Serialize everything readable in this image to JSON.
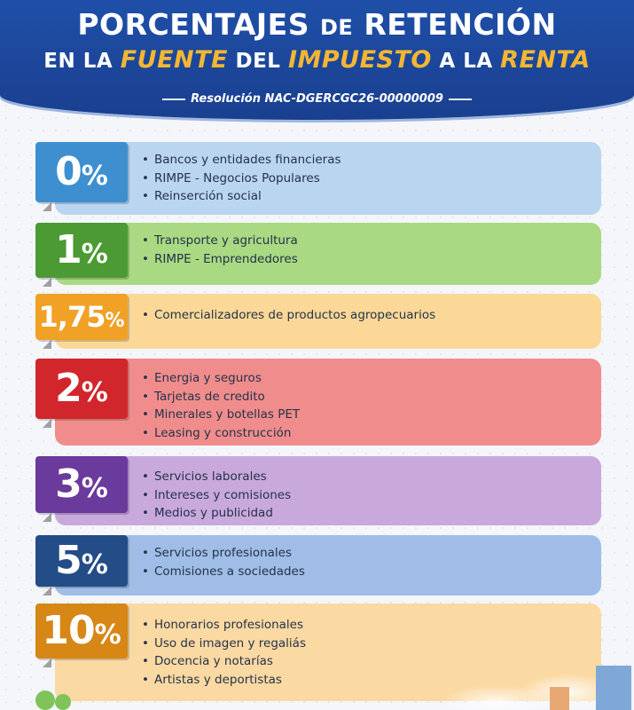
{
  "header": {
    "title_part1": "PORCENTAJES",
    "title_part2": "DE",
    "title_part3": "RETENCIÓN",
    "subtitle_en_la": "EN LA",
    "subtitle_fuente": "FUENTE",
    "subtitle_del": "DEL",
    "subtitle_impuesto": "IMPUESTO",
    "subtitle_a_la": "A LA",
    "subtitle_renta": "RENTA",
    "resolution": "Resolución NAC-DGERCGC26-00000009"
  },
  "rows": [
    {
      "rate": "0",
      "pct": "%",
      "badge_color": "#3d8fd0",
      "bar_color": "#b9d5f0",
      "items": [
        "Bancos y entidades financieras",
        "RIMPE - Negocios Populares",
        "Reinserción social"
      ]
    },
    {
      "rate": "1",
      "pct": "%",
      "badge_color": "#4c9a34",
      "bar_color": "#a9d982",
      "items": [
        "Transporte y agricultura",
        "RIMPE - Emprendedores"
      ]
    },
    {
      "rate": "1,75",
      "pct": "%",
      "badge_color": "#f0a126",
      "bar_color": "#fbd897",
      "items": [
        "Comercializadores de productos agropecuarios"
      ]
    },
    {
      "rate": "2",
      "pct": "%",
      "badge_color": "#d1262b",
      "bar_color": "#f08d8c",
      "items": [
        "Energia y seguros",
        "Tarjetas de credito",
        "Minerales y botellas PET",
        "Leasing y construcción"
      ]
    },
    {
      "rate": "3",
      "pct": "%",
      "badge_color": "#6a3a9c",
      "bar_color": "#c9a8dc",
      "items": [
        "Servicios laborales",
        "Intereses y comisiones",
        "Medios y publicidad"
      ]
    },
    {
      "rate": "5",
      "pct": "%",
      "badge_color": "#244c86",
      "bar_color": "#9fbde6",
      "items": [
        "Servicios profesionales",
        "Comisiones a sociedades"
      ]
    },
    {
      "rate": "10",
      "pct": "%",
      "badge_color": "#d68716",
      "bar_color": "#fbd9a2",
      "items": [
        "Honorarios profesionales",
        "Uso de imagen y regaliás",
        "Docencia y notarías",
        "Artistas y deportistas"
      ]
    }
  ]
}
